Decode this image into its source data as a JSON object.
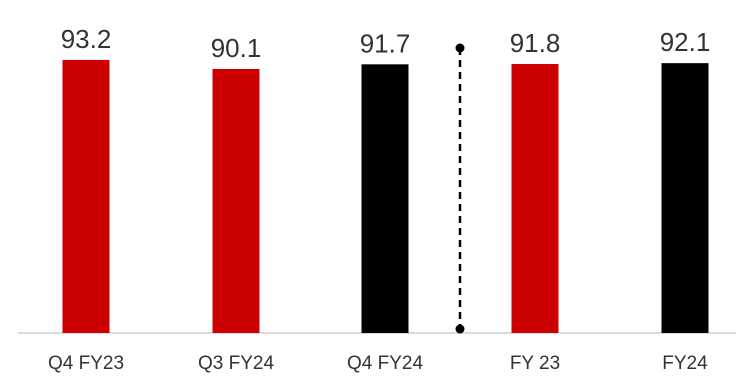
{
  "chart_data": {
    "type": "bar",
    "title": "",
    "xlabel": "",
    "ylabel": "",
    "categories": [
      "Q4 FY23",
      "Q3 FY24",
      "Q4 FY24",
      "FY 23",
      "FY24"
    ],
    "values": [
      93.2,
      90.1,
      91.7,
      91.8,
      92.1
    ],
    "value_labels": [
      "93.2",
      "90.1",
      "91.7",
      "91.8",
      "92.1"
    ],
    "bar_colors": [
      "#cc0000",
      "#cc0000",
      "#000000",
      "#cc0000",
      "#000000"
    ],
    "ylim": [
      0,
      100
    ],
    "grid": false,
    "legend": "none",
    "separator": {
      "style": "dashed",
      "after_category_index": 2
    }
  }
}
